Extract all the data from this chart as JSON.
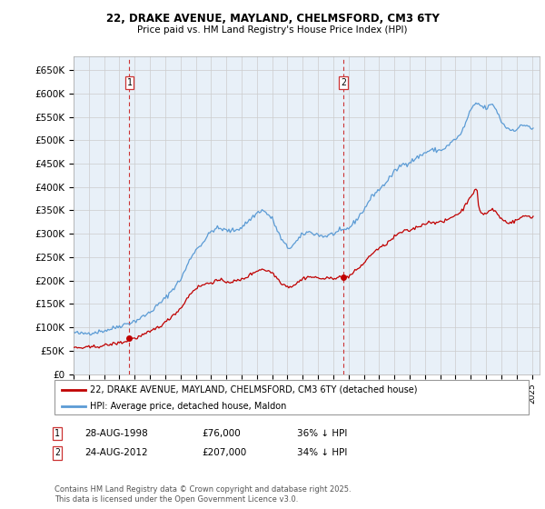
{
  "title": "22, DRAKE AVENUE, MAYLAND, CHELMSFORD, CM3 6TY",
  "subtitle": "Price paid vs. HM Land Registry's House Price Index (HPI)",
  "yticks": [
    0,
    50000,
    100000,
    150000,
    200000,
    250000,
    300000,
    350000,
    400000,
    450000,
    500000,
    550000,
    600000,
    650000
  ],
  "ytick_labels": [
    "£0",
    "£50K",
    "£100K",
    "£150K",
    "£200K",
    "£250K",
    "£300K",
    "£350K",
    "£400K",
    "£450K",
    "£500K",
    "£550K",
    "£600K",
    "£650K"
  ],
  "ylim": [
    0,
    680000
  ],
  "xlim_start": 1995.0,
  "xlim_end": 2025.5,
  "grid_color": "#cccccc",
  "bg_color": "#ffffff",
  "plot_bg_color": "#e8f0f8",
  "sale1_date": 1998.65,
  "sale1_price": 76000,
  "sale2_date": 2012.65,
  "sale2_price": 207000,
  "hpi_color": "#5b9bd5",
  "price_color": "#c00000",
  "legend_label_price": "22, DRAKE AVENUE, MAYLAND, CHELMSFORD, CM3 6TY (detached house)",
  "legend_label_hpi": "HPI: Average price, detached house, Maldon",
  "annotation1_date": "28-AUG-1998",
  "annotation1_price": "£76,000",
  "annotation1_note": "36% ↓ HPI",
  "annotation2_date": "24-AUG-2012",
  "annotation2_price": "£207,000",
  "annotation2_note": "34% ↓ HPI",
  "footer": "Contains HM Land Registry data © Crown copyright and database right 2025.\nThis data is licensed under the Open Government Licence v3.0."
}
